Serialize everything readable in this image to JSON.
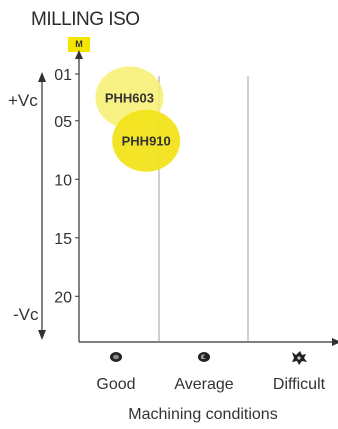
{
  "title": "MILLING ISO",
  "badge": "M",
  "vc_top": "+Vc",
  "vc_bottom": "-Vc",
  "chart_data": {
    "type": "scatter",
    "title": "MILLING ISO",
    "xlabel": "Machining conditions",
    "ylabel": "",
    "categories": [
      "Good",
      "Average",
      "Difficult"
    ],
    "y_ticks": [
      "01",
      "05",
      "10",
      "15",
      "20"
    ],
    "ylim": [
      0,
      22
    ],
    "points": [
      {
        "label": "PHH603",
        "x": 0.6,
        "y": 3,
        "color": "#f7ee6e"
      },
      {
        "label": "PHH910",
        "x": 0.8,
        "y": 6.7,
        "color": "#f2e31c"
      }
    ],
    "colors": {
      "axis": "#333333",
      "divider": "#888888",
      "badge": "#f5e600"
    }
  }
}
